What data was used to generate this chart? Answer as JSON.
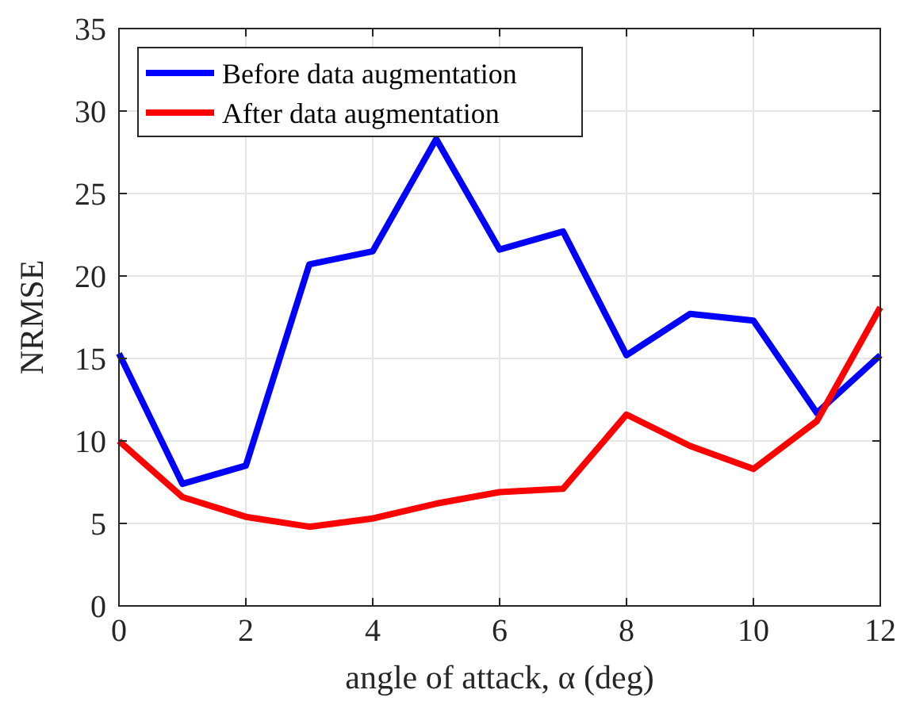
{
  "chart_data": {
    "type": "line",
    "xlabel": "angle of attack, α (deg)",
    "ylabel": "NRMSE",
    "x": [
      0,
      1,
      2,
      3,
      4,
      5,
      6,
      7,
      8,
      9,
      10,
      11,
      12
    ],
    "series": [
      {
        "name": "Before data augmentation",
        "color": "#0000ff",
        "values": [
          15.3,
          7.4,
          8.5,
          20.7,
          21.5,
          28.3,
          21.6,
          22.7,
          15.2,
          17.7,
          17.3,
          11.7,
          15.2
        ]
      },
      {
        "name": "After data augmentation",
        "color": "#ff0000",
        "values": [
          10.0,
          6.6,
          5.4,
          4.8,
          5.3,
          6.2,
          6.9,
          7.1,
          11.6,
          9.7,
          8.3,
          11.2,
          18.1
        ]
      }
    ],
    "xlim": [
      0,
      12
    ],
    "xticks": [
      0,
      2,
      4,
      6,
      8,
      10,
      12
    ],
    "ylim": [
      0,
      35
    ],
    "yticks": [
      0,
      5,
      10,
      15,
      20,
      25,
      30,
      35
    ],
    "grid": true,
    "legend": "top left",
    "line_style": "solid"
  }
}
